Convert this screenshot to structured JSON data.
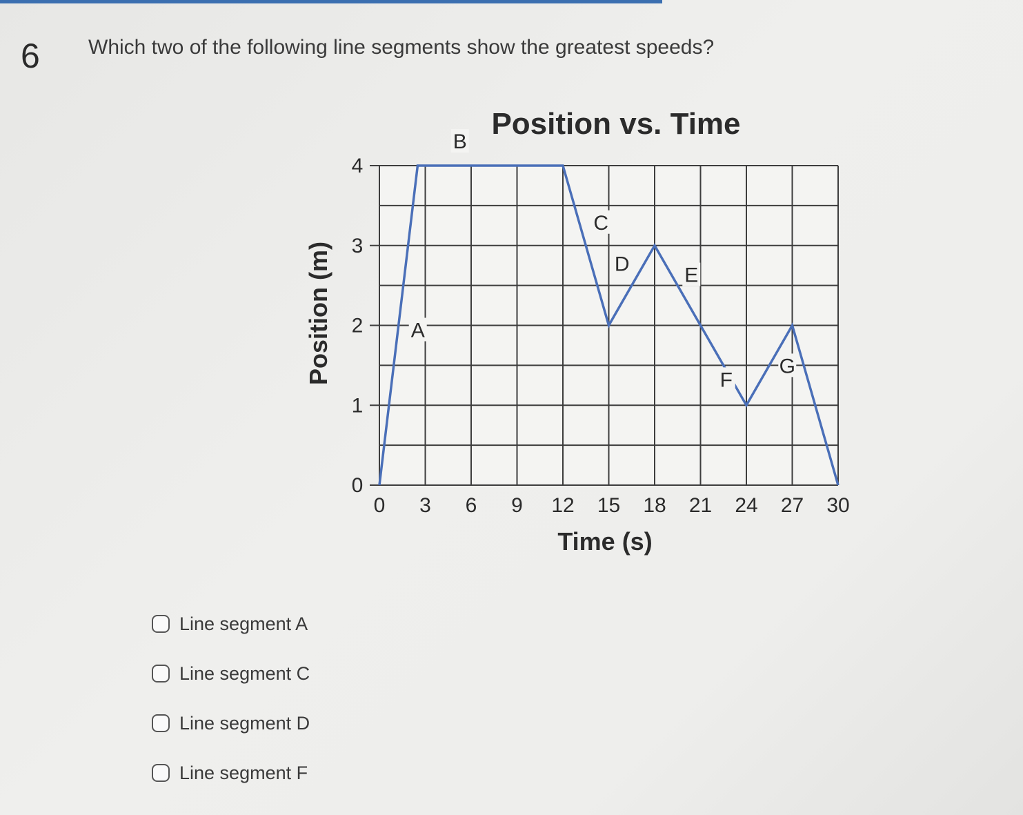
{
  "question": {
    "number": "6",
    "text": "Which two of the following line segments show the greatest speeds?"
  },
  "chart_data": {
    "type": "line",
    "title": "Position vs. Time",
    "xlabel": "Time (s)",
    "ylabel": "Position (m)",
    "xlim": [
      0,
      30
    ],
    "ylim": [
      0,
      4
    ],
    "x_ticks": [
      0,
      3,
      6,
      9,
      12,
      15,
      18,
      21,
      24,
      27,
      30
    ],
    "y_ticks": [
      0,
      1,
      2,
      3,
      4
    ],
    "grid": true,
    "line_color": "#4a6fb8",
    "series": [
      {
        "x": [
          0,
          2.5,
          12,
          15,
          18,
          21,
          24,
          27,
          30
        ],
        "y": [
          0,
          4,
          4,
          2,
          3,
          2,
          1,
          2,
          0
        ]
      }
    ],
    "segment_labels": [
      "A",
      "B",
      "C",
      "D",
      "E",
      "F",
      "G"
    ]
  },
  "options": [
    {
      "label": "Line segment A"
    },
    {
      "label": "Line segment C"
    },
    {
      "label": "Line segment D"
    },
    {
      "label": "Line segment F"
    }
  ]
}
